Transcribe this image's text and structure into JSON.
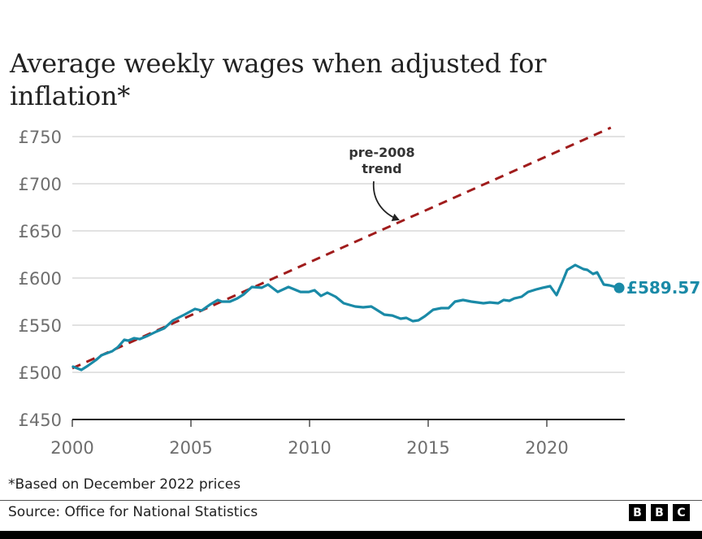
{
  "chart_data": {
    "type": "line",
    "title": "Average weekly wages when adjusted for inflation*",
    "xlabel": "",
    "ylabel": "",
    "xlim": [
      2000,
      2023.3
    ],
    "ylim": [
      450,
      750
    ],
    "grid": true,
    "y_ticks": [
      450,
      500,
      550,
      600,
      650,
      700,
      750
    ],
    "y_tick_labels": [
      "£450",
      "£500",
      "£550",
      "£600",
      "£650",
      "£700",
      "£750"
    ],
    "x_ticks": [
      2000,
      2005,
      2010,
      2015,
      2020
    ],
    "x_tick_labels": [
      "2000",
      "2005",
      "2010",
      "2015",
      "2020"
    ],
    "series": [
      {
        "name": "Average weekly wages (real)",
        "color": "#1a8aa7",
        "style": "solid",
        "x": [
          2000.03,
          2000.38,
          2000.65,
          2000.99,
          2001.23,
          2001.68,
          2001.92,
          2002.19,
          2002.36,
          2002.6,
          2002.84,
          2003.18,
          2003.53,
          2003.87,
          2004.25,
          2004.73,
          2005.17,
          2005.45,
          2005.79,
          2006.13,
          2006.3,
          2006.64,
          2006.95,
          2007.23,
          2007.57,
          2007.98,
          2008.25,
          2008.66,
          2009.11,
          2009.62,
          2009.97,
          2010.21,
          2010.48,
          2010.75,
          2011.1,
          2011.44,
          2011.92,
          2012.26,
          2012.6,
          2012.77,
          2013.15,
          2013.49,
          2013.84,
          2014.08,
          2014.35,
          2014.59,
          2014.86,
          2015.21,
          2015.55,
          2015.86,
          2016.13,
          2016.47,
          2016.82,
          2017.33,
          2017.6,
          2017.95,
          2018.18,
          2018.42,
          2018.63,
          2018.94,
          2019.21,
          2019.55,
          2019.83,
          2020.14,
          2020.41,
          2020.65,
          2020.86,
          2021.2,
          2021.54,
          2021.71,
          2021.95,
          2022.12,
          2022.4,
          2022.64,
          2023.05
        ],
        "values": [
          506.0,
          502.6,
          506.9,
          512.9,
          518.1,
          522.4,
          526.7,
          534.5,
          533.6,
          536.2,
          535.3,
          538.8,
          543.1,
          546.6,
          555.2,
          561.2,
          567.2,
          565.5,
          571.6,
          576.7,
          575.0,
          575.0,
          578.4,
          582.8,
          590.5,
          589.7,
          593.1,
          585.3,
          590.5,
          585.3,
          585.3,
          587.1,
          581.0,
          584.5,
          580.2,
          573.3,
          569.8,
          569.0,
          569.8,
          567.2,
          561.2,
          560.3,
          556.9,
          557.8,
          554.3,
          555.2,
          559.5,
          566.4,
          568.1,
          568.1,
          575.0,
          576.7,
          575.0,
          573.3,
          574.1,
          573.3,
          576.7,
          575.9,
          578.4,
          580.2,
          585.3,
          587.9,
          589.7,
          591.4,
          581.9,
          595.7,
          608.6,
          613.8,
          609.5,
          608.6,
          604.3,
          606.0,
          593.1,
          592.2,
          589.57
        ],
        "end_label": "£589.57"
      },
      {
        "name": "pre-2008 trend",
        "color": "#a01c1c",
        "style": "dashed",
        "x": [
          2000,
          2022.7
        ],
        "values": [
          504.3,
          759.5
        ]
      }
    ],
    "annotations": [
      {
        "text_lines": [
          "pre-2008",
          "trend"
        ],
        "points_to": {
          "x": 2013.8,
          "value": 655
        }
      }
    ],
    "footnote": "*Based on December 2022 prices",
    "source": "Source: Office for National Statistics"
  },
  "branding": {
    "logo_letters": [
      "B",
      "B",
      "C"
    ]
  }
}
